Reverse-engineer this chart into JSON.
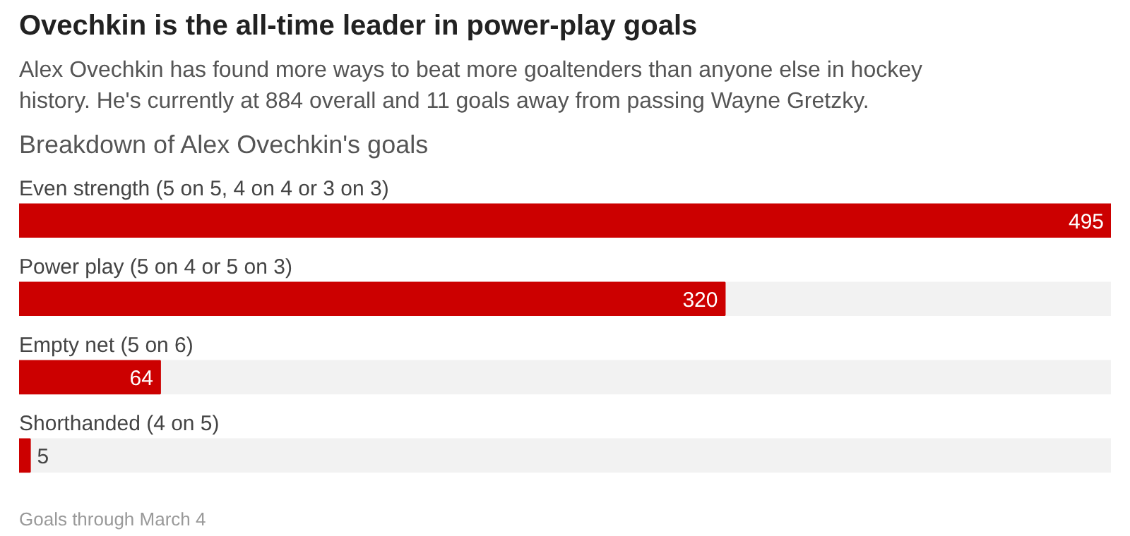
{
  "chart_data": {
    "type": "bar",
    "orientation": "horizontal",
    "title": "Ovechkin is the all-time leader in power-play goals",
    "subtitle": "Alex Ovechkin has found more ways to beat more goaltenders than anyone else in hockey\nhistory. He's currently at 884 overall and 11 goals away from passing Wayne Gretzky.",
    "annotations": [
      "Breakdown of Alex Ovechkin's goals",
      "Goals through March 4"
    ],
    "categories": [
      "Even strength (5 on 5, 4 on 4 or 3 on 3)",
      "Power play (5 on 4 or 5 on 3)",
      "Empty net (5 on 6)",
      "Shorthanded (4 on 5)"
    ],
    "values": [
      495,
      320,
      64,
      5
    ],
    "color": "#cc0000",
    "xlim": [
      0,
      495
    ],
    "data_labels": true,
    "tick_labels": false,
    "grid": false
  }
}
